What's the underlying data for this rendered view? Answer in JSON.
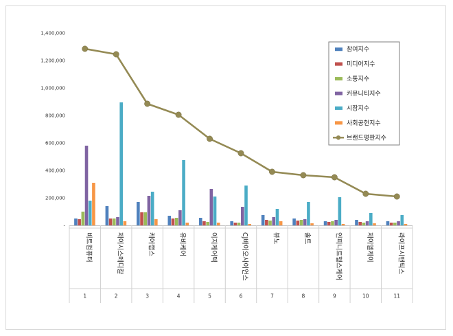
{
  "chart_data": {
    "type": "bar",
    "title": "",
    "xlabel": "",
    "ylabel": "",
    "ylim": [
      0,
      1400000
    ],
    "yticks": [
      "-",
      "200,000",
      "400,000",
      "600,000",
      "800,000",
      "1,000,000",
      "1,200,000",
      "1,400,000"
    ],
    "categories": [
      "비트컴퓨터",
      "제이시스메디칼",
      "케어랩스",
      "유비케어",
      "이지케어텍",
      "CJ바이오사이언스",
      "뷰노",
      "솔트",
      "인피니트헬스케어",
      "제이엘케이",
      "라이프시맨틱스"
    ],
    "indices": [
      "1",
      "2",
      "3",
      "4",
      "5",
      "6",
      "7",
      "8",
      "9",
      "10",
      "11"
    ],
    "series": [
      {
        "name": "참여지수",
        "color": "#4f81bd",
        "values": [
          50000,
          140000,
          170000,
          70000,
          55000,
          30000,
          75000,
          50000,
          30000,
          40000,
          30000
        ]
      },
      {
        "name": "미디어지수",
        "color": "#c0504d",
        "values": [
          45000,
          50000,
          95000,
          50000,
          30000,
          20000,
          40000,
          35000,
          25000,
          25000,
          20000
        ]
      },
      {
        "name": "소통지수",
        "color": "#9bbb59",
        "values": [
          100000,
          50000,
          95000,
          55000,
          25000,
          20000,
          35000,
          40000,
          30000,
          20000,
          20000
        ]
      },
      {
        "name": "커뮤니티지수",
        "color": "#8064a2",
        "values": [
          580000,
          60000,
          215000,
          110000,
          265000,
          135000,
          60000,
          45000,
          40000,
          30000,
          30000
        ]
      },
      {
        "name": "시장지수",
        "color": "#4bacc6",
        "values": [
          180000,
          895000,
          245000,
          475000,
          210000,
          290000,
          120000,
          170000,
          205000,
          90000,
          75000
        ]
      },
      {
        "name": "사회공헌지수",
        "color": "#f79646",
        "values": [
          310000,
          30000,
          45000,
          20000,
          20000,
          10000,
          30000,
          15000,
          10000,
          15000,
          10000
        ]
      }
    ],
    "line": {
      "name": "브랜드평판지수",
      "color": "#948a54",
      "values": [
        1285000,
        1245000,
        885000,
        805000,
        630000,
        525000,
        390000,
        365000,
        350000,
        230000,
        210000
      ]
    },
    "legend": "top-right"
  }
}
